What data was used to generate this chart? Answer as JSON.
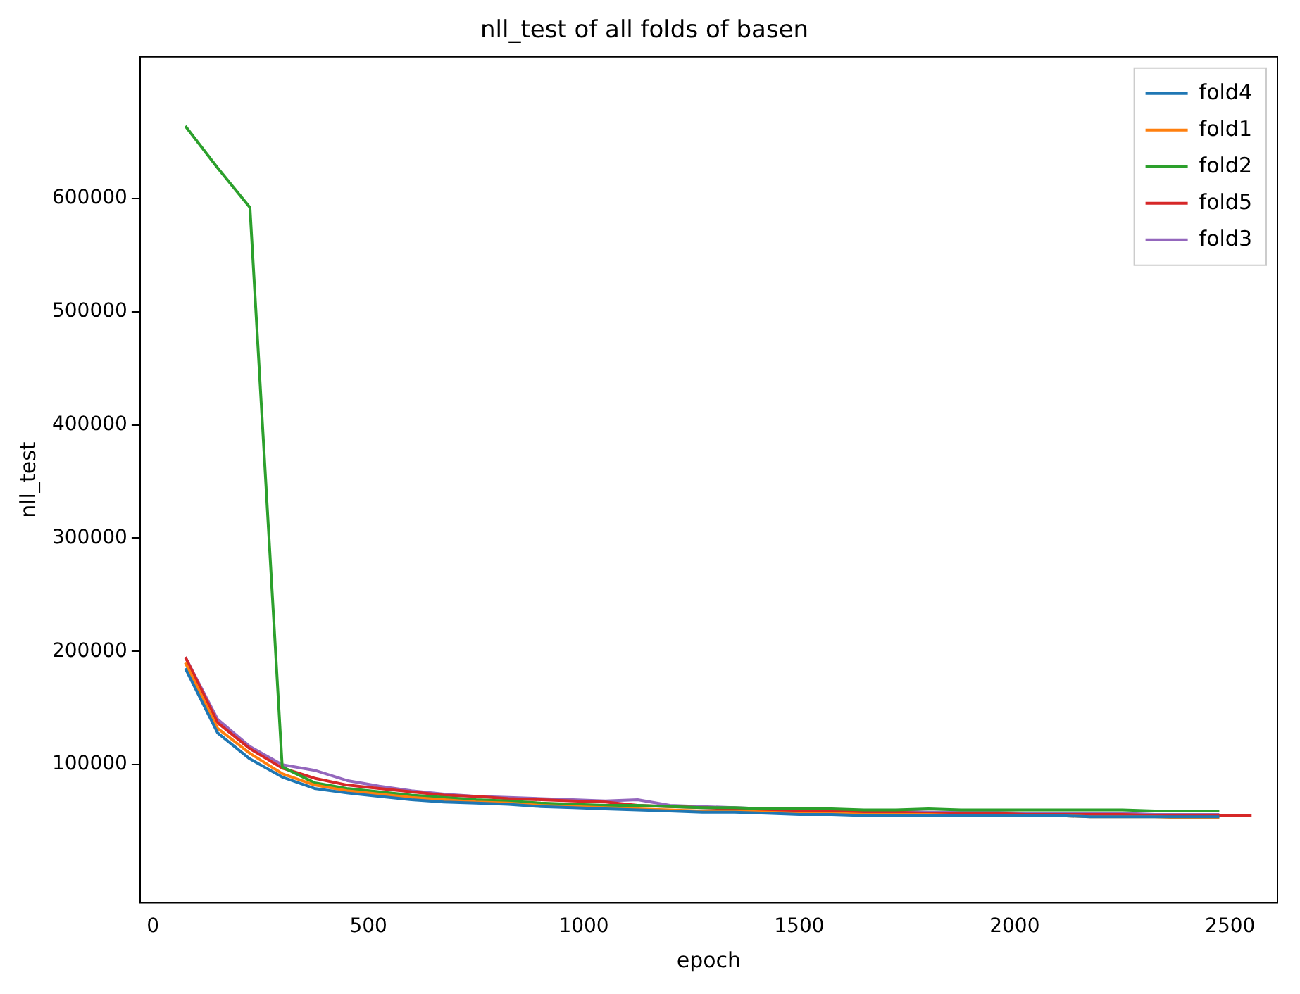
{
  "chart_data": {
    "type": "line",
    "title": "nll_test of all folds of basen",
    "xlabel": "epoch",
    "ylabel": "nll_test",
    "x": [
      75,
      150,
      225,
      300,
      375,
      450,
      525,
      600,
      675,
      750,
      825,
      900,
      975,
      1050,
      1125,
      1200,
      1275,
      1350,
      1425,
      1500,
      1575,
      1650,
      1725,
      1800,
      1875,
      1950,
      2025,
      2100,
      2175,
      2250,
      2325,
      2400,
      2475
    ],
    "series": [
      {
        "name": "fold4",
        "color": "#1f77b4",
        "values": [
          185000,
          128000,
          105000,
          89000,
          79000,
          75000,
          72000,
          69000,
          67000,
          66000,
          65000,
          63000,
          62000,
          61000,
          60000,
          59000,
          58000,
          58000,
          57000,
          56000,
          56000,
          55000,
          55000,
          55000,
          55000,
          55000,
          55000,
          55000,
          54000,
          54000,
          54000,
          54000,
          54000
        ]
      },
      {
        "name": "fold1",
        "color": "#ff7f0e",
        "values": [
          190000,
          132000,
          110000,
          92000,
          82000,
          77000,
          74000,
          71000,
          69000,
          67000,
          66000,
          64000,
          63000,
          62000,
          61000,
          60000,
          59000,
          59000,
          58000,
          57000,
          57000,
          56000,
          56000,
          56000,
          55000,
          55000,
          55000,
          55000,
          54000,
          54000,
          54000,
          53000,
          53000
        ]
      },
      {
        "name": "fold2",
        "color": "#2ca02c",
        "values": [
          664000,
          627000,
          592000,
          98000,
          84000,
          79000,
          76000,
          73000,
          71000,
          69000,
          68000,
          66000,
          65000,
          64000,
          64000,
          63000,
          62000,
          62000,
          61000,
          61000,
          61000,
          60000,
          60000,
          61000,
          60000,
          60000,
          60000,
          60000,
          60000,
          60000,
          59000,
          59000,
          59000
        ]
      },
      {
        "name": "fold5",
        "color": "#d62728",
        "x": [
          75,
          150,
          225,
          300,
          375,
          450,
          525,
          600,
          675,
          750,
          825,
          900,
          975,
          1050,
          1125,
          1200,
          1275,
          1350,
          1425,
          1500,
          1575,
          1650,
          1725,
          1800,
          1875,
          1950,
          2025,
          2100,
          2175,
          2250,
          2325,
          2400,
          2475,
          2550
        ],
        "values": [
          195000,
          137000,
          114000,
          97000,
          88000,
          82000,
          79000,
          76000,
          73000,
          72000,
          70000,
          69000,
          68000,
          67000,
          64000,
          63000,
          62000,
          61000,
          60000,
          59000,
          59000,
          58000,
          58000,
          57000,
          57000,
          57000,
          56000,
          56000,
          56000,
          56000,
          55000,
          55000,
          55000,
          55000
        ]
      },
      {
        "name": "fold3",
        "color": "#9467bd",
        "values": [
          195000,
          140000,
          116000,
          100000,
          95000,
          86000,
          81000,
          77000,
          74000,
          72000,
          71000,
          70000,
          69000,
          68000,
          69000,
          64000,
          63000,
          62000,
          61000,
          60000,
          60000,
          59000,
          59000,
          58000,
          58000,
          58000,
          57000,
          57000,
          57000,
          57000,
          56000,
          56000,
          56000
        ]
      }
    ],
    "xlim": [
      -30,
      2610
    ],
    "xticks": [
      0,
      500,
      1000,
      1500,
      2000,
      2500
    ],
    "ylim": [
      -22000,
      725000
    ],
    "yticks": [
      100000,
      200000,
      300000,
      400000,
      500000,
      600000
    ],
    "legend": "top right",
    "marker": "none",
    "line_style": "solid"
  }
}
